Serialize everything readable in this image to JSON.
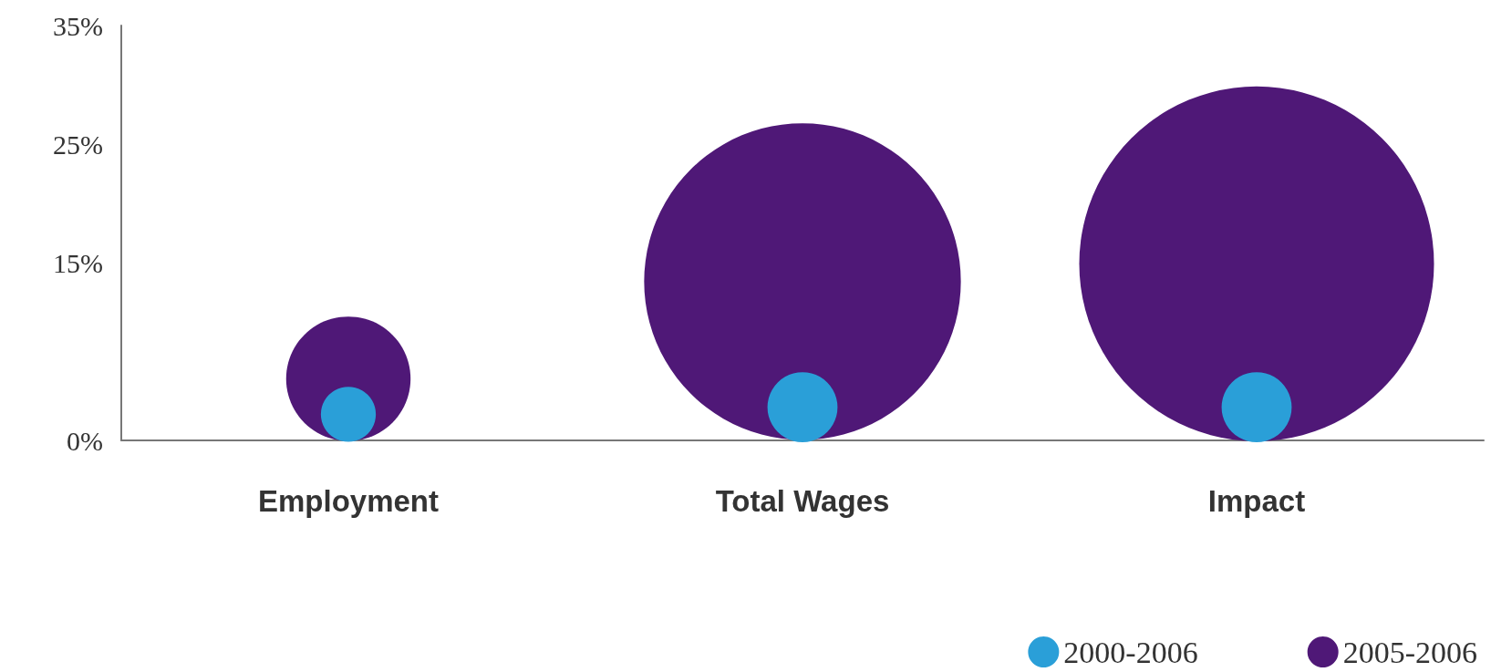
{
  "chart_data": {
    "type": "bubble",
    "categories": [
      "Employment",
      "Total Wages",
      "Impact"
    ],
    "series": [
      {
        "name": "2000-2006",
        "color": "#2a9fd8",
        "values": [
          2.2,
          2.8,
          2.8
        ],
        "sizes": [
          0.024,
          0.039,
          0.039
        ]
      },
      {
        "name": "2005-2006",
        "color": "#4f1877",
        "values": [
          5.2,
          13.4,
          14.9
        ],
        "sizes": [
          0.123,
          0.797,
          1
        ]
      }
    ],
    "ylim": [
      0,
      35
    ],
    "yticks": [
      {
        "value": 0,
        "label": "0%"
      },
      {
        "value": 15,
        "label": "15%"
      },
      {
        "value": 25,
        "label": "25%"
      },
      {
        "value": 35,
        "label": "35%"
      }
    ],
    "grid": false,
    "legend": "bottom right",
    "marker": "circle"
  }
}
